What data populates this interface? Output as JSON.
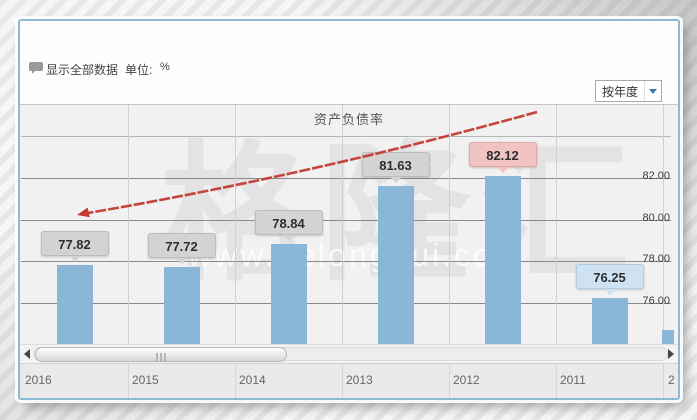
{
  "header": {
    "show_all_label": "显示全部数据",
    "unit_label": "单位:",
    "unit_value": "%"
  },
  "controls": {
    "period_dropdown_value": "按年度"
  },
  "chart": {
    "title": "资产负债率"
  },
  "chart_data": {
    "type": "bar",
    "title": "资产负债率",
    "unit": "%",
    "categories": [
      "2016",
      "2015",
      "2014",
      "2013",
      "2012",
      "2011"
    ],
    "values": [
      77.82,
      77.72,
      78.84,
      81.63,
      82.12,
      76.25
    ],
    "value_labels": [
      "77.82",
      "77.72",
      "78.84",
      "81.63",
      "82.12",
      "76.25"
    ],
    "y_axis": {
      "side": "right",
      "tick_labels": [
        "82.00",
        "80.00",
        "78.00",
        "76.00"
      ],
      "tick_values": [
        82,
        80,
        78,
        76
      ],
      "gridline_values": [
        84,
        82,
        80,
        78,
        76
      ],
      "ylim": [
        74,
        85.5
      ]
    },
    "legend": "off",
    "grid": "on",
    "highlight": {
      "max_category": "2012",
      "max_value": 82.12,
      "min_category": "2011",
      "min_value": 76.25
    },
    "partial_next_year_label": "2",
    "annotation": {
      "type": "arrow",
      "description": "red trend arrow pointing down-left from 2012 toward 2016",
      "color": "#c23a32"
    }
  },
  "watermark": {
    "brand": "格隆汇",
    "url": "www.gelonghui.com"
  },
  "colors": {
    "bar": "#8ab6d8",
    "label_default_bg": "#d3d3d3",
    "label_default_border": "#bcbcbc",
    "label_max_bg": "#f1c3c3",
    "label_max_border": "#dca8a8",
    "label_min_bg": "#cfe2f1",
    "label_min_border": "#aecde5",
    "gridline_major": "#8a8a8a",
    "gridline_light": "#b5b5b5",
    "arrow": "#c23a32",
    "panel_border": "#8cb9d6"
  }
}
